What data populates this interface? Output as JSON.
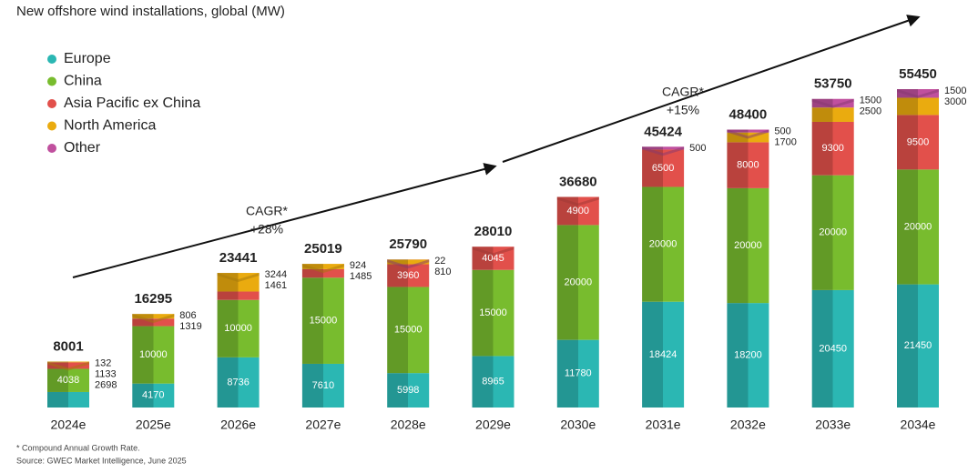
{
  "chart_data": {
    "type": "bar",
    "stacked": true,
    "title": "New offshore wind installations, global (MW)",
    "categories": [
      "2024e",
      "2025e",
      "2026e",
      "2027e",
      "2028e",
      "2029e",
      "2030e",
      "2031e",
      "2032e",
      "2033e",
      "2034e"
    ],
    "series": [
      {
        "name": "Europe",
        "color": "#2bb7b3",
        "values": [
          2698,
          4170,
          8736,
          7610,
          5998,
          8965,
          11780,
          18424,
          18200,
          20450,
          21450
        ]
      },
      {
        "name": "China",
        "color": "#78bc2e",
        "values": [
          4038,
          10000,
          10000,
          15000,
          15000,
          15000,
          20000,
          20000,
          20000,
          20000,
          20000
        ]
      },
      {
        "name": "Asia Pacific ex China",
        "color": "#e2504b",
        "values": [
          1133,
          1319,
          1461,
          1485,
          3960,
          4045,
          4900,
          6500,
          8000,
          9300,
          9500
        ]
      },
      {
        "name": "North America",
        "color": "#eaab0f",
        "values": [
          132,
          806,
          3244,
          924,
          810,
          null,
          null,
          null,
          1700,
          2500,
          3000
        ]
      },
      {
        "name": "Other",
        "color": "#c0509e",
        "values": [
          null,
          null,
          null,
          null,
          22,
          null,
          null,
          500,
          500,
          1500,
          1500
        ]
      }
    ],
    "totals": [
      8001,
      16295,
      23441,
      25019,
      25790,
      28010,
      36680,
      45424,
      48400,
      53750,
      55450
    ],
    "legend": "top-left",
    "cagr_labels": [
      [
        "CAGR*",
        "+28%"
      ],
      [
        "CAGR*",
        "+15%"
      ]
    ],
    "footnotes": [
      "* Compound Annual Growth Rate.",
      "Source: GWEC Market Intelligence, June 2025"
    ]
  }
}
